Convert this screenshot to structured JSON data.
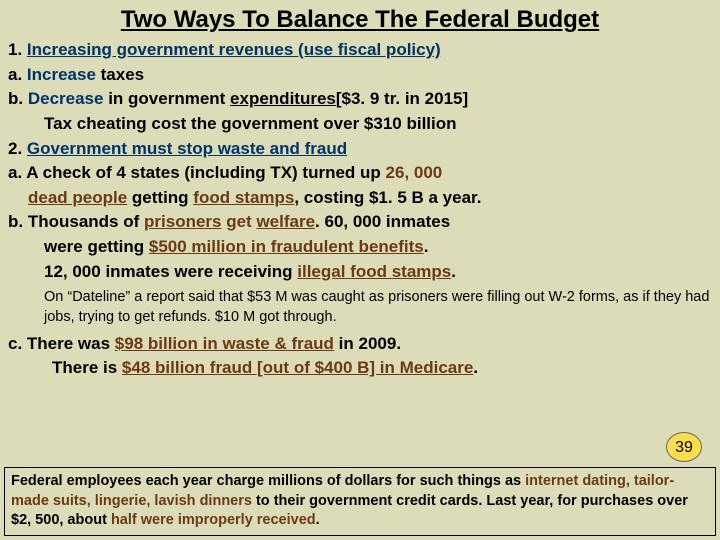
{
  "title": "Two Ways To Balance The Federal Budget",
  "l1a": "1. ",
  "l1b": "Increasing government revenues (use fiscal policy)",
  "l2a": " a. ",
  "l2b": "Increase",
  "l2c": " taxes",
  "l3a": " b. ",
  "l3b": "Decrease",
  "l3c": " in government ",
  "l3d": "expenditures",
  "l3e": "[$3. 9 tr. in 2015]",
  "l4": "Tax cheating cost the government over $310 billion",
  "l5a": "2.  ",
  "l5b": "Government must stop waste and fraud",
  "l6a": "a. A check of 4 states ",
  "l6b": "(including TX)",
  "l6c": " turned up ",
  "l6d": "26, 000",
  "l7a": "dead people",
  "l7b": " getting ",
  "l7c": "food stamps",
  "l7d": ", costing $1. 5 B a year.",
  "l8a": "b. Thousands ",
  "l8b": "of ",
  "l8c": "prisoners",
  "l8d": " get ",
  "l8e": "welfare",
  "l8f": ". 60, 000 inmates",
  "l9a": "were getting ",
  "l9b": "$500 million in fraudulent benefits",
  "l9c": ".",
  "l10a": "12, 000 inmates were receiving ",
  "l10b": "illegal food stamps",
  "l10c": ".",
  "note": "On “Dateline” a report said that $53 M was caught as prisoners were filling out W-2 forms, as if they had jobs, trying to get refunds. $10 M got through.",
  "l11a": " c. There was ",
  "l11b": "$98 billion in waste & fraud",
  "l11c": " in 2009.",
  "l12a": "There is ",
  "l12b": "$48 billion fraud [out of $400 B] in Medicare",
  "l12c": ".",
  "footer_a": "Federal employees each year charge millions of dollars for such things as ",
  "footer_b": "internet dating, tailor-made suits, lingerie, lavish dinners",
  "footer_c": " to their government credit cards. Last year, for purchases over $2, 500, about ",
  "footer_d": "half were improperly received",
  "footer_e": ".",
  "page_number": "39"
}
